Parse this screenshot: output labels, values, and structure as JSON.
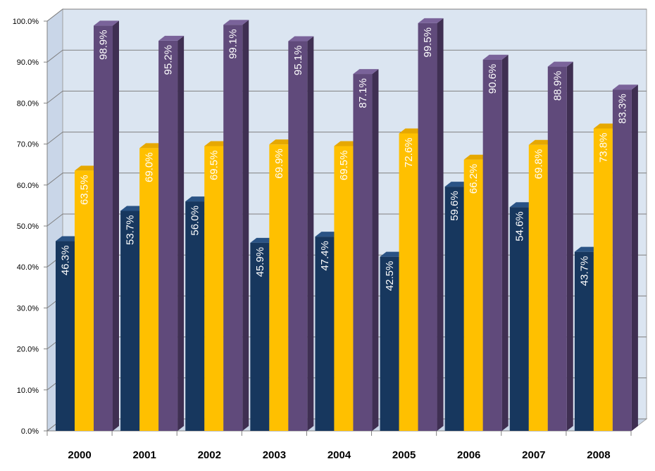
{
  "chart_data": {
    "type": "bar",
    "categories": [
      "2000",
      "2001",
      "2002",
      "2003",
      "2004",
      "2005",
      "2006",
      "2007",
      "2008"
    ],
    "series": [
      {
        "values": [
          46.3,
          53.7,
          56.0,
          45.9,
          47.4,
          42.5,
          59.6,
          54.6,
          43.7
        ],
        "labels": [
          "46.3%",
          "53.7%",
          "56.0%",
          "45.9%",
          "47.4%",
          "42.5%",
          "59.6%",
          "54.6%",
          "43.7%"
        ]
      },
      {
        "values": [
          63.5,
          69.0,
          69.5,
          69.9,
          69.5,
          72.6,
          66.2,
          69.8,
          73.8
        ],
        "labels": [
          "63.5%",
          "69.0%",
          "69.5%",
          "69.9%",
          "69.5%",
          "72.6%",
          "66.2%",
          "69.8%",
          "73.8%"
        ]
      },
      {
        "values": [
          98.9,
          95.2,
          99.1,
          95.1,
          87.1,
          99.5,
          90.6,
          88.9,
          83.3
        ],
        "labels": [
          "98.9%",
          "95.2%",
          "99.1%",
          "95.1%",
          "87.1%",
          "99.5%",
          "90.6%",
          "88.9%",
          "83.3%"
        ]
      }
    ],
    "ylim": [
      0,
      100
    ],
    "yticks": [
      "0.0%",
      "10.0%",
      "20.0%",
      "30.0%",
      "40.0%",
      "50.0%",
      "60.0%",
      "70.0%",
      "80.0%",
      "90.0%",
      "100.0%"
    ],
    "grid": true,
    "three_d": true,
    "colors": {
      "series": [
        "#17375e",
        "#ffc000",
        "#604a7b"
      ],
      "series_top": [
        "#2a5385",
        "#e6a800",
        "#7a639a"
      ],
      "series_side": [
        "#0f2540",
        "#c99600",
        "#3f2f52"
      ],
      "label_text_series_2": "#fff2cc",
      "background_wall": "#dbe5f1",
      "chart_background": "#ffffff",
      "gridline": "#808080"
    }
  }
}
